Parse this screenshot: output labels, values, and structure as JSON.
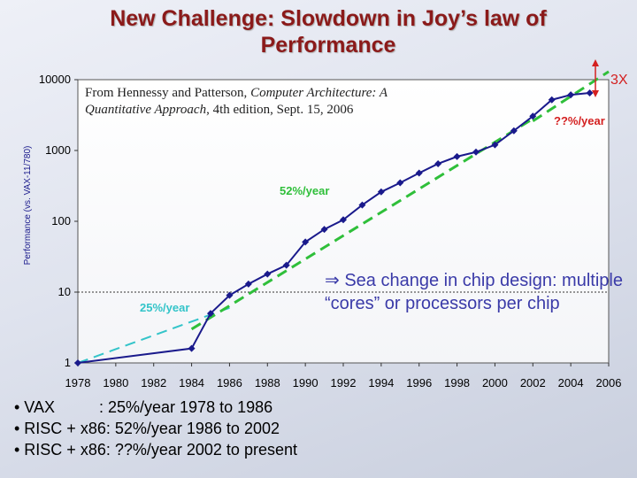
{
  "title_line1": "New Challenge: Slowdown in Joy’s law of",
  "title_line2": "Performance",
  "source": {
    "prefix": "From Hennessy and Patterson, ",
    "book": "Computer Architecture: A Quantitative Approach",
    "suffix": ", 4th edition, Sept. 15, 2006"
  },
  "callout": {
    "symbol": "⇒",
    "text": " Sea change in chip design: multiple “cores” or processors per chip"
  },
  "bullets": [
    "• VAX          : 25%/year 1978 to 1986",
    "• RISC + x86: 52%/year 1986 to 2002",
    "• RISC + x86: ??%/year 2002 to present"
  ],
  "colors": {
    "title": "#8b1a1a",
    "data_line": "#1a1a8c",
    "vax_trend": "#33c4c9",
    "risc_trend": "#2fbf3a",
    "recent_trend": "#2fbf3a",
    "annotation_red": "#d42020",
    "plot_background": "#ffffff"
  },
  "chart_data": {
    "type": "line",
    "ylabel": "Performance (vs. VAX-11/780)",
    "xlabel": "",
    "xlim": [
      1978,
      2006
    ],
    "ylim": [
      1,
      10000
    ],
    "yscale": "log",
    "x_ticks": [
      "1978",
      "1980",
      "1982",
      "1984",
      "1986",
      "1988",
      "1990",
      "1992",
      "1994",
      "1996",
      "1998",
      "2000",
      "2002",
      "2004",
      "2006"
    ],
    "y_ticks": [
      "1",
      "10",
      "100",
      "1000",
      "10000"
    ],
    "gridline_at_y": 10,
    "series": [
      {
        "name": "",
        "points": [
          [
            1978,
            1
          ],
          [
            1984,
            1.6
          ],
          [
            1985,
            5
          ],
          [
            1986,
            9
          ],
          [
            1987,
            13
          ],
          [
            1988,
            18
          ],
          [
            1989,
            24
          ],
          [
            1990,
            51
          ],
          [
            1991,
            77
          ],
          [
            1992,
            105
          ],
          [
            1993,
            170
          ],
          [
            1994,
            260
          ],
          [
            1995,
            350
          ],
          [
            1996,
            480
          ],
          [
            1997,
            650
          ],
          [
            1998,
            820
          ],
          [
            1999,
            950
          ],
          [
            2000,
            1200
          ],
          [
            2001,
            1900
          ],
          [
            2002,
            3050
          ],
          [
            2003,
            5200
          ],
          [
            2004,
            6100
          ],
          [
            2005,
            6500
          ]
        ]
      }
    ],
    "trend_lines": [
      {
        "label": "25%/year",
        "from": [
          1978,
          1
        ],
        "to": [
          1986,
          6
        ]
      },
      {
        "label": "52%/year",
        "from": [
          1984,
          3
        ],
        "to": [
          2002,
          2800
        ]
      },
      {
        "label": "",
        "from": [
          2002,
          2600
        ],
        "to": [
          2006,
          13000
        ]
      }
    ],
    "annotations": [
      {
        "text": "??%/year"
      },
      {
        "text": "3X"
      }
    ]
  }
}
